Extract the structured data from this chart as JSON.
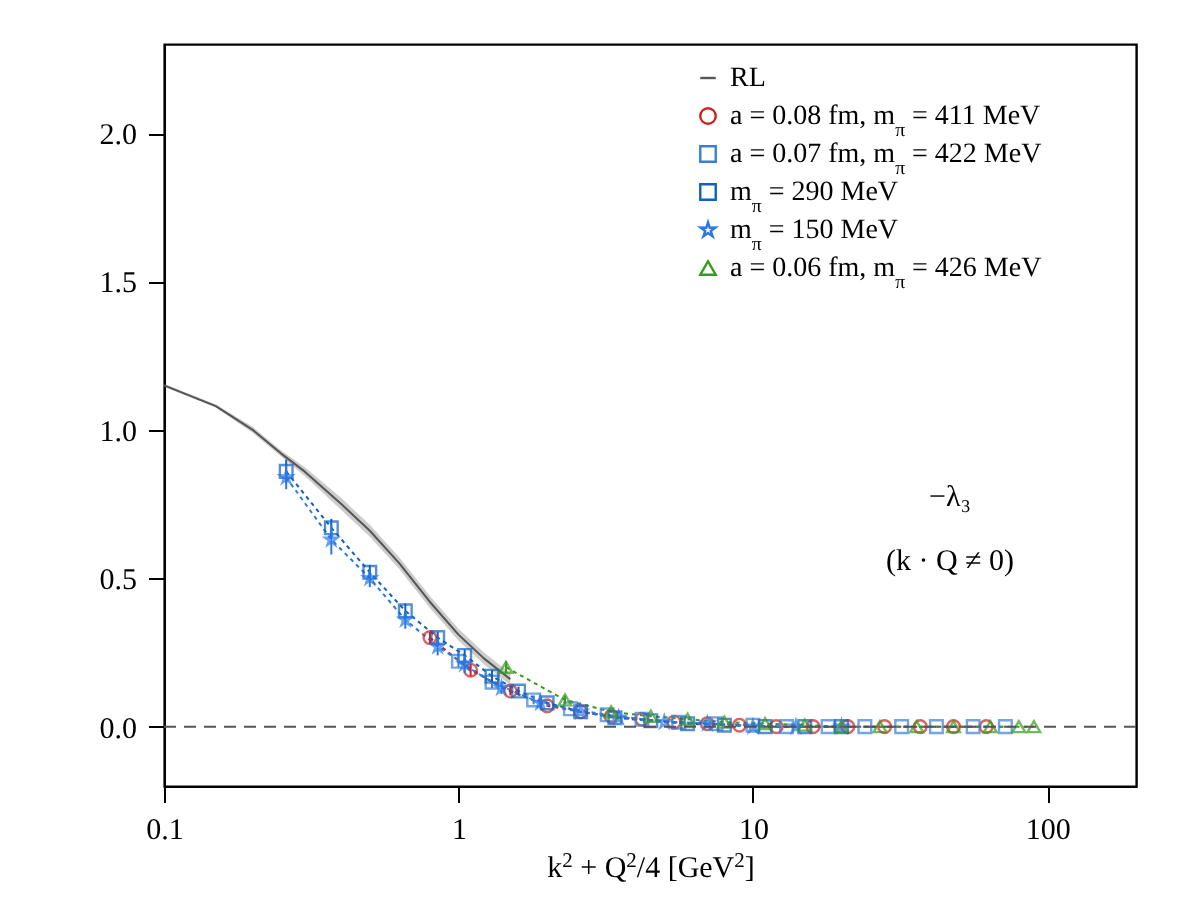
{
  "chart_data": {
    "type": "line",
    "xlabel": "k$^{2}$ + Q$^{2}$/4   [GeV$^{2}$]",
    "log": "x",
    "xlim": [
      0.1,
      200
    ],
    "xticks": [
      0.1,
      1,
      10,
      100
    ],
    "ylim": [
      -0.2,
      2.3
    ],
    "yticks": [
      {
        "value": 0,
        "label": "0.0"
      },
      {
        "value": 0.5,
        "label": "0.5"
      },
      {
        "value": 1,
        "label": "1.0"
      },
      {
        "value": 1.5,
        "label": "1.5"
      },
      {
        "value": 2,
        "label": "2.0"
      }
    ],
    "grid": false,
    "legend": "top right",
    "annotations": [
      "−λ₃",
      "(k · Q ≠ 0)"
    ],
    "ref_lines": [
      {
        "axis": "y",
        "value": 0,
        "color": "#555555",
        "line_style": "dashed"
      }
    ],
    "series": [
      {
        "name": "RL",
        "color": "#555555",
        "marker": "none",
        "line_style": "solid",
        "x": [
          0.1,
          0.15,
          0.2,
          0.25,
          0.3,
          0.4,
          0.5,
          0.63,
          0.8,
          1.0,
          1.22,
          1.5
        ],
        "values": [
          1.15,
          1.08,
          1.0,
          0.92,
          0.86,
          0.75,
          0.66,
          0.55,
          0.42,
          0.31,
          0.23,
          0.16
        ],
        "lower": [
          1.145,
          1.075,
          0.99,
          0.91,
          0.845,
          0.73,
          0.64,
          0.53,
          0.4,
          0.29,
          0.21,
          0.14
        ],
        "upper": [
          1.155,
          1.085,
          1.01,
          0.93,
          0.875,
          0.77,
          0.68,
          0.57,
          0.44,
          0.33,
          0.25,
          0.18
        ]
      },
      {
        "name": "a = 0.08 fm, m$_{π}$ = 411 MeV",
        "color": "#cc2222",
        "marker": "circle",
        "line_style": "dotted",
        "x": [
          0.8,
          1.1,
          1.5,
          2.0,
          2.6,
          3.3,
          4.2,
          5.4,
          7,
          9,
          12,
          16,
          21,
          28,
          37,
          48,
          62
        ],
        "values": [
          0.3,
          0.19,
          0.12,
          0.07,
          0.05,
          0.035,
          0.025,
          0.015,
          0.01,
          0.005,
          0,
          0,
          0,
          0,
          0,
          0,
          0
        ],
        "errors": [
          0.02,
          0.02,
          0.015,
          null,
          null,
          null,
          null,
          null,
          null,
          null,
          null,
          null,
          null,
          null,
          null,
          null,
          null
        ]
      },
      {
        "name": "a = 0.07 fm, m$_{π}$ = 422 MeV",
        "color": "#3a7fd5",
        "marker": "square",
        "line_style": "dotted",
        "x": [
          1.0,
          1.3,
          1.8,
          2.4,
          3.2,
          4.2,
          5.6,
          7.5,
          10,
          13,
          18,
          24,
          32,
          42,
          56,
          72
        ],
        "values": [
          0.22,
          0.15,
          0.09,
          0.06,
          0.04,
          0.025,
          0.015,
          0.01,
          0.005,
          0,
          0,
          0,
          0,
          0,
          0,
          0
        ],
        "errors": [
          0.02,
          0.02,
          0.015,
          null,
          null,
          null,
          null,
          null,
          null,
          null,
          null,
          null,
          null,
          null,
          null,
          null
        ]
      },
      {
        "name": "m$_{π}$ = 290 MeV",
        "color": "#1060c0",
        "marker": "square",
        "line_style": "dotted",
        "x": [
          0.26,
          0.37,
          0.5,
          0.66,
          0.85,
          1.05,
          1.3,
          1.6,
          2.0,
          2.6,
          3.4,
          4.5,
          6,
          8,
          11,
          15,
          20
        ],
        "values": [
          0.86,
          0.67,
          0.52,
          0.39,
          0.3,
          0.24,
          0.17,
          0.12,
          0.08,
          0.05,
          0.03,
          0.02,
          0.01,
          0.005,
          0,
          0,
          0
        ],
        "errors": [
          0.04,
          0.03,
          0.025,
          0.025,
          0.02,
          0.02,
          0.02,
          0.015,
          null,
          null,
          null,
          null,
          null,
          null,
          null,
          null,
          null
        ]
      },
      {
        "name": "m$_{π}$ = 150 MeV",
        "color": "#2a78e8",
        "marker": "star",
        "line_style": "dotted",
        "x": [
          0.26,
          0.37,
          0.5,
          0.66,
          0.85,
          1.05,
          1.4,
          1.9,
          2.6,
          3.5,
          5,
          7,
          10,
          14,
          20
        ],
        "values": [
          0.84,
          0.63,
          0.5,
          0.36,
          0.27,
          0.21,
          0.13,
          0.08,
          0.05,
          0.03,
          0.015,
          0.01,
          0,
          0,
          0
        ],
        "errors": [
          0.04,
          0.05,
          0.03,
          0.03,
          0.03,
          0.03,
          0.02,
          0.02,
          null,
          null,
          null,
          null,
          null,
          null,
          null
        ]
      },
      {
        "name": "a = 0.06 fm, m$_{π}$ = 426 MeV",
        "color": "#3a9a20",
        "marker": "triangle",
        "line_style": "dotted",
        "x": [
          1.45,
          2.3,
          3.3,
          4.5,
          6,
          8,
          11,
          15,
          20,
          27,
          36,
          48,
          64,
          80,
          90
        ],
        "values": [
          0.2,
          0.09,
          0.05,
          0.035,
          0.025,
          0.015,
          0.01,
          0.005,
          0,
          0,
          0,
          0,
          0,
          0,
          0
        ],
        "errors": [
          0.02,
          0.015,
          null,
          null,
          null,
          null,
          null,
          null,
          null,
          null,
          null,
          null,
          null,
          null,
          null
        ]
      }
    ]
  }
}
